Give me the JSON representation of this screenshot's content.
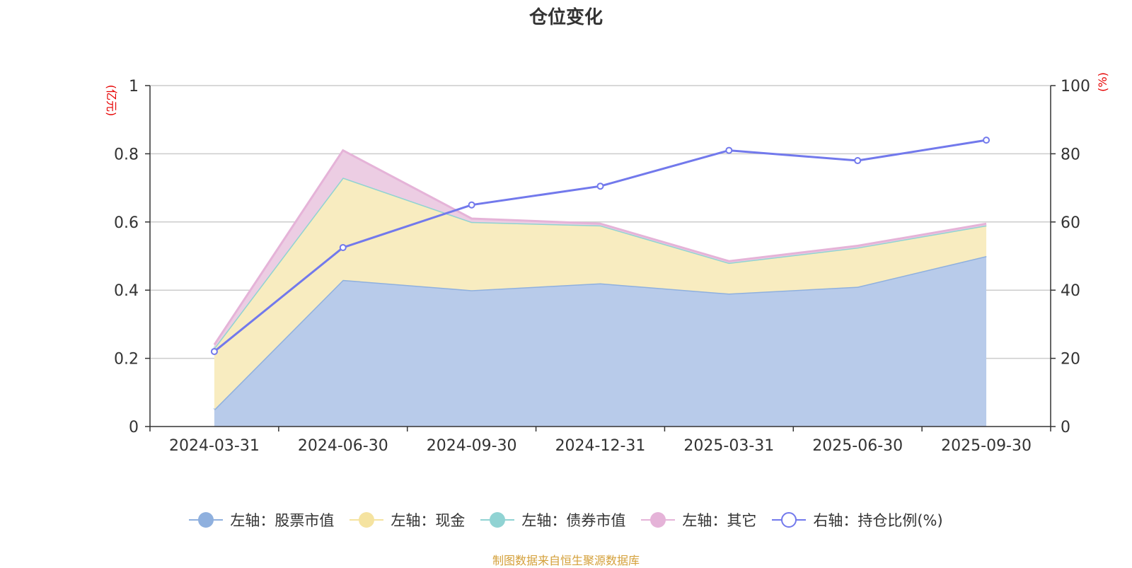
{
  "chart_data": {
    "type": "area",
    "title": "仓位变化",
    "categories": [
      "2024-03-31",
      "2024-06-30",
      "2024-09-30",
      "2024-12-31",
      "2025-03-31",
      "2025-06-30",
      "2025-09-30"
    ],
    "left_axis": {
      "unit": "(亿元)",
      "ylim": [
        0,
        1
      ],
      "ticks": [
        "0",
        "0.2",
        "0.4",
        "0.6",
        "0.8",
        "1"
      ],
      "tick_values": [
        0,
        0.2,
        0.4,
        0.6,
        0.8,
        1
      ]
    },
    "right_axis": {
      "unit": "(%)",
      "ylim": [
        0,
        100
      ],
      "ticks": [
        "0",
        "20",
        "40",
        "60",
        "80",
        "100"
      ],
      "tick_values": [
        0,
        20,
        40,
        60,
        80,
        100
      ]
    },
    "series": [
      {
        "name": "左轴：股票市值",
        "axis": "left",
        "stack": true,
        "color": "#8fb0de",
        "fill": "#b8cbea",
        "values": [
          0.05,
          0.43,
          0.4,
          0.42,
          0.39,
          0.41,
          0.5
        ]
      },
      {
        "name": "左轴：现金",
        "axis": "left",
        "stack": true,
        "color": "#f5e3a0",
        "fill": "#f8ecc0",
        "values": [
          0.18,
          0.3,
          0.2,
          0.17,
          0.09,
          0.115,
          0.09
        ]
      },
      {
        "name": "左轴：债券市值",
        "axis": "left",
        "stack": true,
        "color": "#90d3d3",
        "fill": "#bfe6e6",
        "values": [
          0,
          0,
          0,
          0,
          0,
          0,
          0
        ]
      },
      {
        "name": "左轴：其它",
        "axis": "left",
        "stack": true,
        "color": "#e5b3d8",
        "fill": "#eccde3",
        "values": [
          0.01,
          0.08,
          0.01,
          0.005,
          0.005,
          0.005,
          0.005
        ]
      },
      {
        "name": "右轴：持仓比例(%)",
        "axis": "right",
        "stack": false,
        "color": "#7279ec",
        "values": [
          22,
          52.5,
          65,
          70.5,
          81,
          78,
          84
        ]
      }
    ],
    "legend_position": "bottom",
    "grid": true
  },
  "footer": "制图数据来自恒生聚源数据库"
}
